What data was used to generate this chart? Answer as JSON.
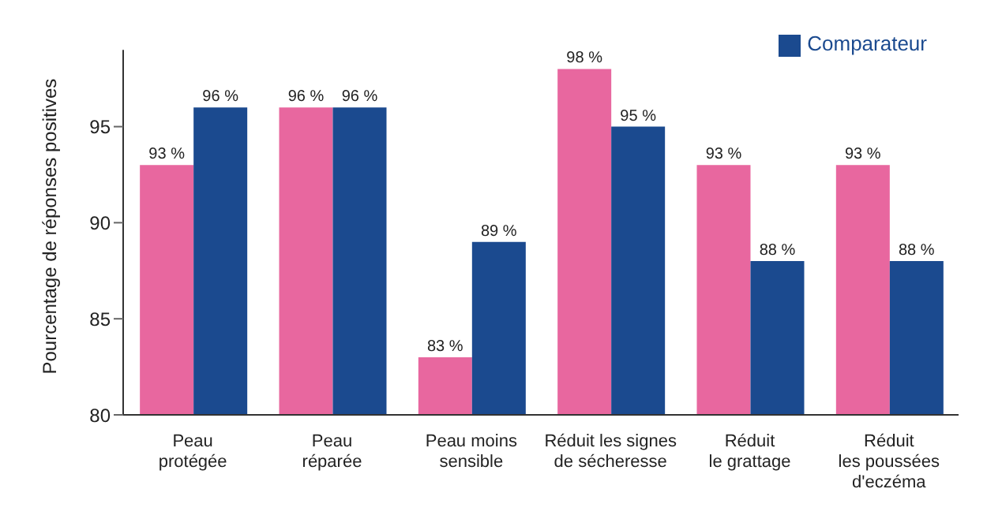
{
  "chart_data": {
    "type": "bar",
    "ylabel": "Pourcentage de réponses positives",
    "categories": [
      "Peau\nprotégée",
      "Peau\nréparée",
      "Peau moins\nsensible",
      "Réduit les signes\nde sécheresse",
      "Réduit\nle grattage",
      "Réduit\nles poussées\nd'eczéma"
    ],
    "series": [
      {
        "color": "#e8679f",
        "values": [
          93,
          96,
          83,
          98,
          93,
          93
        ],
        "value_labels": [
          "93 %",
          "96 %",
          "83 %",
          "98 %",
          "93 %",
          "93 %"
        ]
      },
      {
        "name": "Comparateur",
        "color": "#1b4a8f",
        "values": [
          96,
          96,
          89,
          95,
          88,
          88
        ],
        "value_labels": [
          "96 %",
          "96 %",
          "89 %",
          "95 %",
          "88 %",
          "88 %"
        ]
      }
    ],
    "ylim": [
      80,
      99
    ],
    "yticks": [
      80,
      85,
      90,
      95
    ],
    "legend": "top right"
  }
}
